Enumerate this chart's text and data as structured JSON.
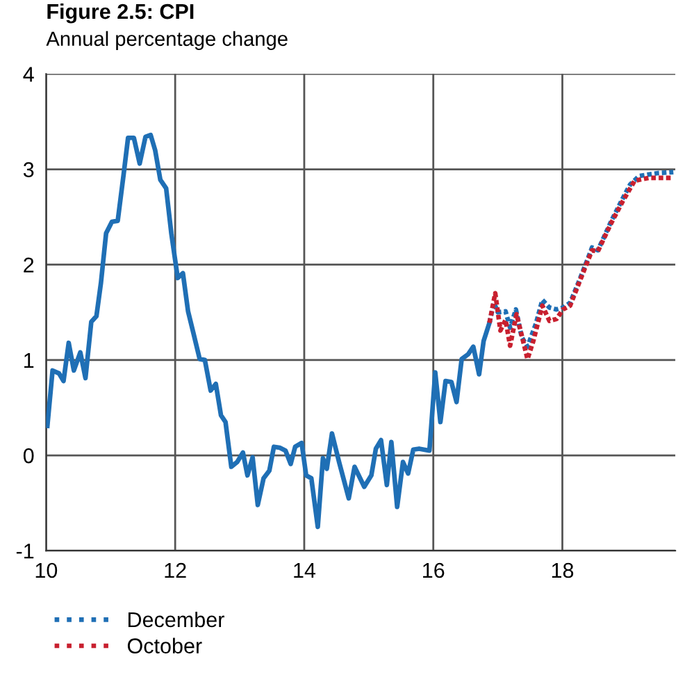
{
  "chart_data": {
    "type": "line",
    "title": "Figure 2.5: CPI",
    "subtitle": "Annual percentage change",
    "xlim": [
      10,
      19.75
    ],
    "xticks": [
      10,
      12,
      14,
      16,
      18
    ],
    "ylim": [
      -1,
      4
    ],
    "yticks": [
      -1,
      0,
      1,
      2,
      3,
      4
    ],
    "grid": true,
    "legend": "bottom",
    "series": [
      {
        "color": "#1f6fb5",
        "line_style": "solid",
        "x": [
          10.02,
          10.1,
          10.2,
          10.27,
          10.35,
          10.43,
          10.53,
          10.61,
          10.7,
          10.78,
          10.85,
          10.93,
          11.02,
          11.11,
          11.2,
          11.27,
          11.36,
          11.45,
          11.54,
          11.62,
          11.69,
          11.77,
          11.86,
          11.94,
          12.04,
          12.12,
          12.2,
          12.28,
          12.38,
          12.46,
          12.55,
          12.63,
          12.71,
          12.78,
          12.87,
          12.96,
          13.05,
          13.12,
          13.2,
          13.28,
          13.37,
          13.46,
          13.53,
          13.62,
          13.71,
          13.79,
          13.86,
          13.96,
          14.03,
          14.11,
          14.21,
          14.29,
          14.35,
          14.43,
          14.54,
          14.69,
          14.78,
          14.93,
          15.04,
          15.11,
          15.19,
          15.28,
          15.35,
          15.44,
          15.53,
          15.61,
          15.69,
          15.78,
          15.94,
          16.03,
          16.11,
          16.19,
          16.28,
          16.36,
          16.44,
          16.54,
          16.62,
          16.71,
          16.78,
          16.87
        ],
        "values": [
          0.31,
          0.89,
          0.86,
          0.78,
          1.18,
          0.89,
          1.08,
          0.81,
          1.4,
          1.46,
          1.81,
          2.33,
          2.45,
          2.46,
          2.94,
          3.33,
          3.33,
          3.06,
          3.34,
          3.36,
          3.2,
          2.89,
          2.8,
          2.33,
          1.86,
          1.91,
          1.51,
          1.29,
          1.01,
          1.0,
          0.68,
          0.75,
          0.42,
          0.35,
          -0.12,
          -0.07,
          0.03,
          -0.21,
          -0.02,
          -0.52,
          -0.24,
          -0.16,
          0.09,
          0.08,
          0.05,
          -0.09,
          0.09,
          0.13,
          -0.21,
          -0.24,
          -0.75,
          -0.03,
          -0.14,
          0.23,
          -0.07,
          -0.45,
          -0.12,
          -0.33,
          -0.21,
          0.07,
          0.16,
          -0.31,
          0.14,
          -0.54,
          -0.07,
          -0.19,
          0.06,
          0.07,
          0.05,
          0.87,
          0.35,
          0.78,
          0.77,
          0.56,
          1.01,
          1.06,
          1.14,
          0.85,
          1.2,
          1.39
        ]
      },
      {
        "name": "December",
        "color": "#1f6fb5",
        "line_style": "dotted",
        "x": [
          16.87,
          16.94,
          17.0,
          17.12,
          17.19,
          17.28,
          17.37,
          17.46,
          17.59,
          17.69,
          17.8,
          17.91,
          18.01,
          18.12,
          18.26,
          18.37,
          18.46,
          18.55,
          18.76,
          18.94,
          19.05,
          19.19,
          19.48,
          19.72
        ],
        "values": [
          1.39,
          1.6,
          1.5,
          1.51,
          1.34,
          1.53,
          1.24,
          1.14,
          1.38,
          1.63,
          1.55,
          1.53,
          1.55,
          1.6,
          1.83,
          2.02,
          2.18,
          2.15,
          2.46,
          2.7,
          2.84,
          2.93,
          2.96,
          2.97
        ]
      },
      {
        "name": "October",
        "color": "#c8202f",
        "line_style": "dotted",
        "x": [
          16.87,
          16.96,
          17.04,
          17.12,
          17.19,
          17.29,
          17.46,
          17.55,
          17.69,
          17.8,
          17.91,
          18.01,
          18.12,
          18.26,
          18.37,
          18.46,
          18.55,
          18.76,
          18.94,
          19.12,
          19.34,
          19.72
        ],
        "values": [
          1.39,
          1.7,
          1.31,
          1.42,
          1.15,
          1.48,
          1.01,
          1.2,
          1.57,
          1.41,
          1.43,
          1.53,
          1.57,
          1.81,
          2.0,
          2.15,
          2.14,
          2.44,
          2.67,
          2.88,
          2.91,
          2.91
        ]
      }
    ]
  }
}
